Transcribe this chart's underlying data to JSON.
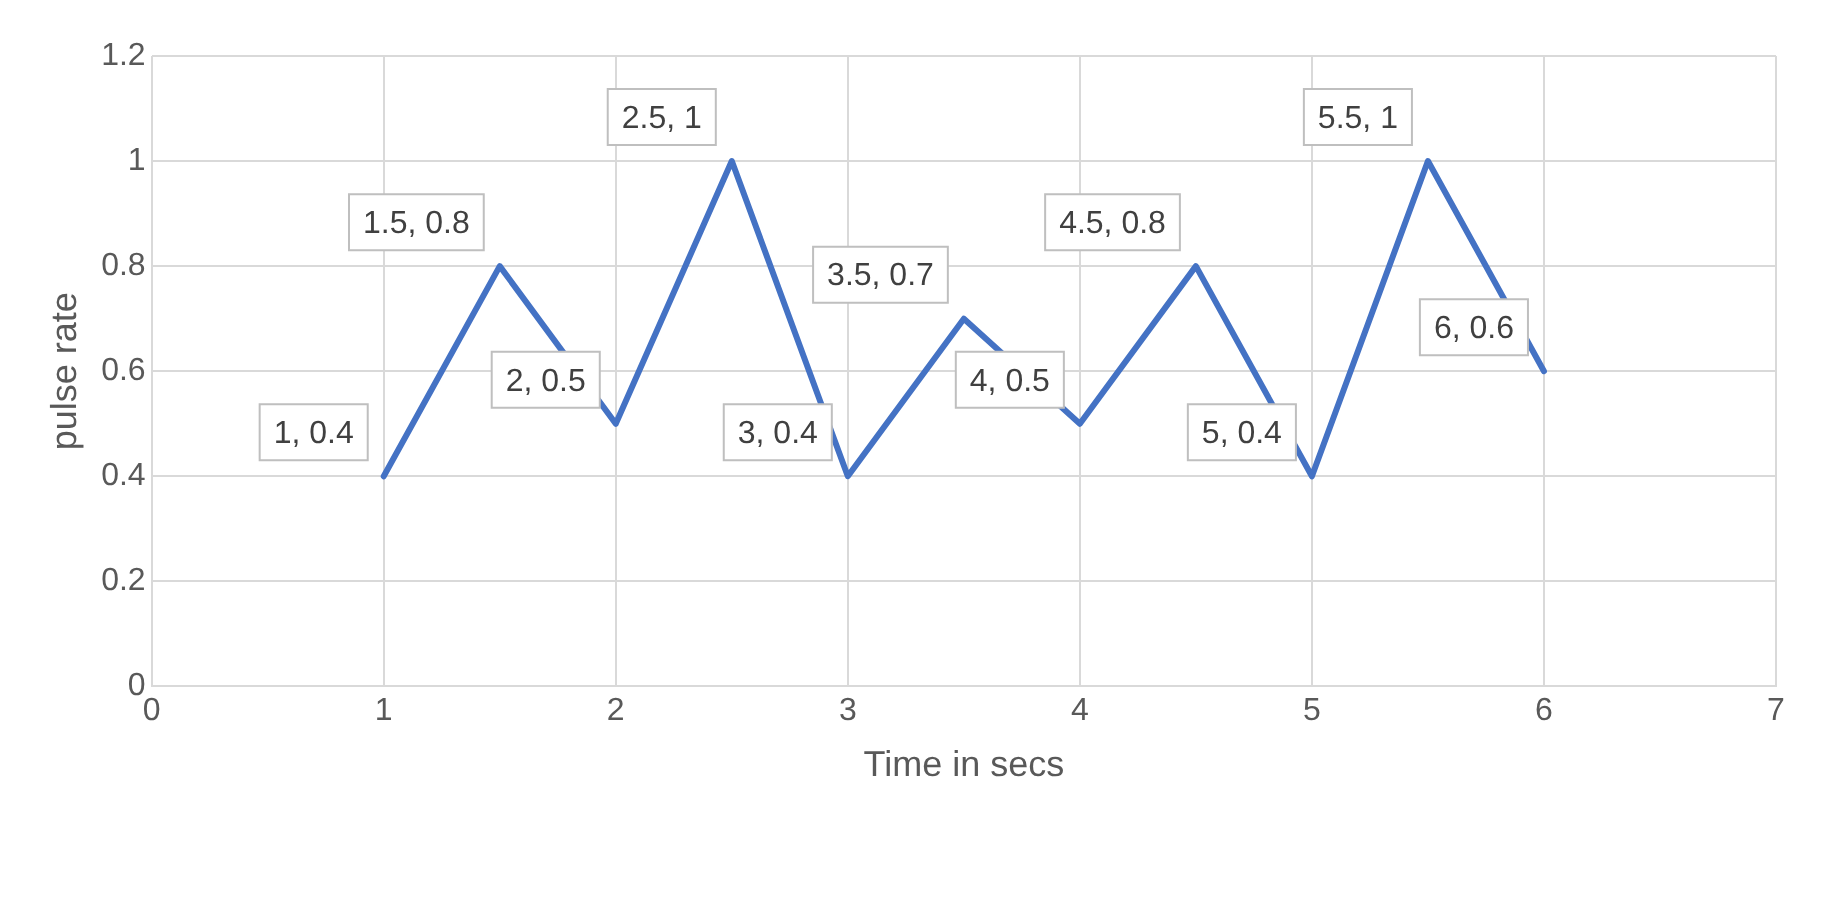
{
  "chart_data": {
    "type": "line",
    "xlabel": "Time in secs",
    "ylabel": "pulse rate",
    "x": [
      1,
      1.5,
      2,
      2.5,
      3,
      3.5,
      4,
      4.5,
      5,
      5.5,
      6
    ],
    "series": [
      {
        "color": "#4472c4",
        "values": [
          0.4,
          0.8,
          0.5,
          1,
          0.4,
          0.7,
          0.5,
          0.8,
          0.4,
          1,
          0.6
        ],
        "value_labels": [
          "1, 0.4",
          "1.5, 0.8",
          "2, 0.5",
          "2.5, 1",
          "3, 0.4",
          "3.5, 0.7",
          "4, 0.5",
          "4.5, 0.8",
          "5, 0.4",
          "5.5, 1",
          "6, 0.6"
        ]
      }
    ],
    "xlim": [
      0,
      7
    ],
    "xticks": [
      0,
      1,
      2,
      3,
      4,
      5,
      6,
      7
    ],
    "ylim": [
      0,
      1.2
    ],
    "yticks": [
      0,
      0.2,
      0.4,
      0.6,
      0.8,
      1,
      1.2
    ],
    "grid": true,
    "legend": false,
    "marker": "none",
    "line_style": "solid"
  }
}
